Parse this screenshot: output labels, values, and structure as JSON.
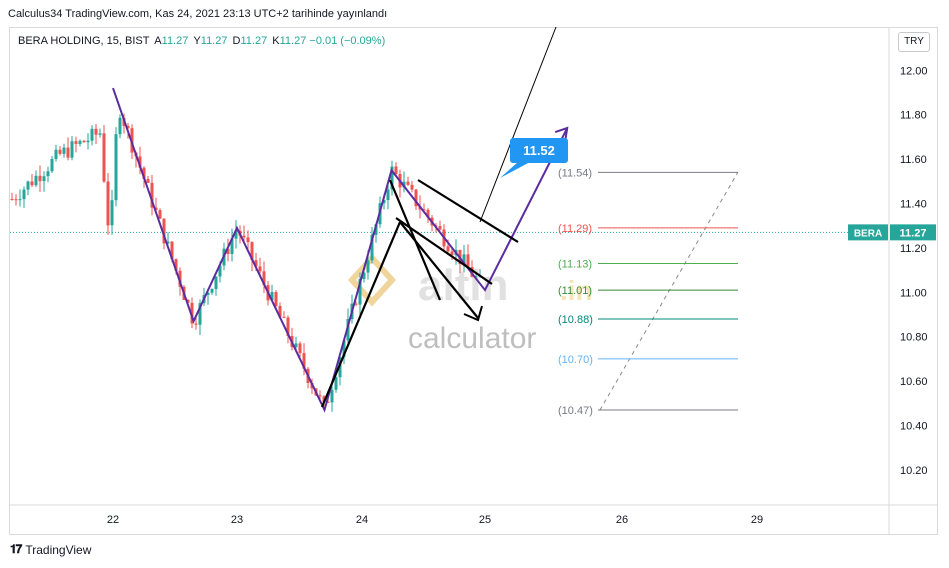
{
  "header": {
    "publish_line": "Calculus34 TradingView.com, Kas 24, 2021 23:13 UTC+2 tarihinde yayınlandı"
  },
  "legend": {
    "symbol": "BERA HOLDING, 15, BIST",
    "a_label": "A",
    "a_value": "11.27",
    "y_label": "Y",
    "y_value": "11.27",
    "d_label": "D",
    "d_value": "11.27",
    "k_label": "K",
    "k_value": "11.27",
    "change": "−0.01 (−0.09%)"
  },
  "currency_button": "TRY",
  "footer": {
    "logo_text": "TradingView"
  },
  "watermark": {
    "brand": "altin",
    "brand_suffix": ".in",
    "sub": "calculator"
  },
  "colors": {
    "up": "#26a69a",
    "down": "#ef5350",
    "pattern": "#5b2c9e",
    "callout": "#2196f3",
    "last_price_tag": "#26a69a"
  },
  "chart_data": {
    "type": "candlestick",
    "y_ticks": [
      "12.00",
      "11.80",
      "11.60",
      "11.40",
      "11.20",
      "11.00",
      "10.80",
      "10.60",
      "10.40",
      "10.20"
    ],
    "ylim": [
      10.1,
      12.2
    ],
    "x_ticks": [
      "22",
      "23",
      "24",
      "25",
      "26",
      "29"
    ],
    "last_price": {
      "symbol": "BERA",
      "value": "11.27"
    },
    "target_callout": "11.52",
    "fib_levels": [
      {
        "label": "(11.54)",
        "value": 11.54,
        "color": "#787b86"
      },
      {
        "label": "(11.29)",
        "value": 11.29,
        "color": "#ef5350"
      },
      {
        "label": "(11.13)",
        "value": 11.13,
        "color": "#4caf50"
      },
      {
        "label": "(11.01)",
        "value": 11.01,
        "color": "#388e3c"
      },
      {
        "label": "(10.88)",
        "value": 10.88,
        "color": "#00897b"
      },
      {
        "label": "(10.70)",
        "value": 10.7,
        "color": "#64b5f6"
      },
      {
        "label": "(10.47)",
        "value": 10.47,
        "color": "#787b86"
      }
    ],
    "zigzag_pattern": [
      {
        "x": "22",
        "y": 11.92
      },
      {
        "x": "22.65",
        "y": 10.87
      },
      {
        "x": "23",
        "y": 11.29
      },
      {
        "x": "23.7",
        "y": 10.47
      },
      {
        "x": "24.24",
        "y": 11.55
      },
      {
        "x": "25",
        "y": 11.01
      },
      {
        "x": "25.6",
        "y": 11.74
      }
    ]
  }
}
